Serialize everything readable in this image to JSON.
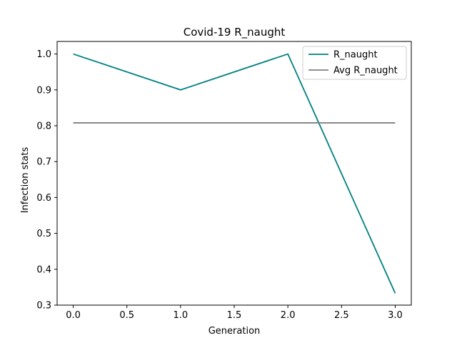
{
  "chart_data": {
    "type": "line",
    "title": "Covid-19 R_naught",
    "xlabel": "Generation",
    "ylabel": "Infection stats",
    "xlim": [
      -0.15,
      3.15
    ],
    "ylim": [
      0.3,
      1.035
    ],
    "x_ticks": [
      0.0,
      0.5,
      1.0,
      1.5,
      2.0,
      2.5,
      3.0
    ],
    "x_tick_labels": [
      "0.0",
      "0.5",
      "1.0",
      "1.5",
      "2.0",
      "2.5",
      "3.0"
    ],
    "y_ticks": [
      0.3,
      0.4,
      0.5,
      0.6,
      0.7,
      0.8,
      0.9,
      1.0
    ],
    "y_tick_labels": [
      "0.3",
      "0.4",
      "0.5",
      "0.6",
      "0.7",
      "0.8",
      "0.9",
      "1.0"
    ],
    "grid": false,
    "legend_position": "top-right",
    "series": [
      {
        "name": "R_naught",
        "color": "#008080",
        "x": [
          0,
          1,
          2,
          3
        ],
        "y": [
          1.0,
          0.9,
          1.0,
          0.333
        ]
      },
      {
        "name": "Avg R_naught",
        "color": "#808080",
        "x": [
          0,
          3
        ],
        "y": [
          0.808,
          0.808
        ]
      }
    ]
  }
}
